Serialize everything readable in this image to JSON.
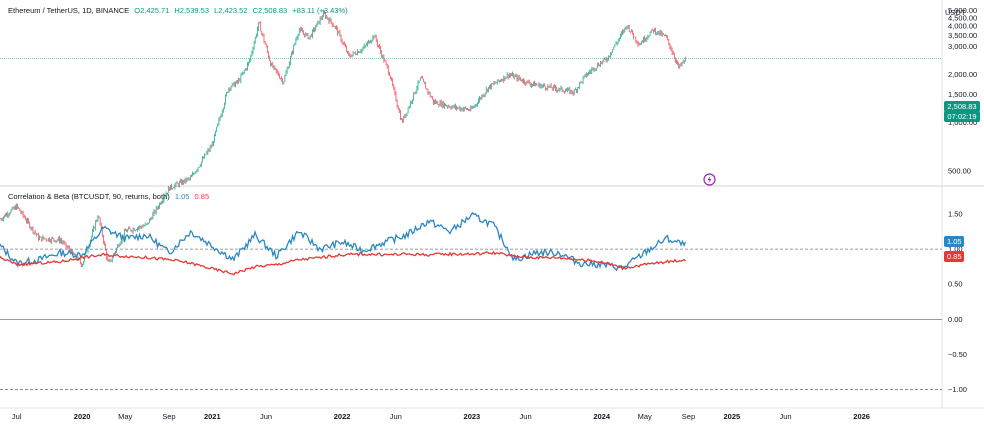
{
  "price_pane": {
    "symbol": "Ethereum / TetherUS, 1D, BINANCE",
    "open": "O2,425.71",
    "high": "H2,539.53",
    "low": "L2,423.52",
    "close": "C2,508.83",
    "change": "+83.11 (+3.43%)",
    "currency": "USDT",
    "price_tag": "2,508.83",
    "countdown_tag": "07:02:19",
    "colors": {
      "up": "#089981",
      "down": "#f23645"
    }
  },
  "indicator_pane": {
    "title": "Correlation & Beta (BTCUSDT, 90, returns, both)",
    "value_1": "1.05",
    "value_2": "0.85",
    "colors": {
      "beta": "#2e86c1",
      "corr": "#e53935"
    }
  },
  "chart_data": [
    {
      "type": "line",
      "title": "Ethereum / TetherUS, 1D, BINANCE",
      "xlabel": "",
      "ylabel": "USDT",
      "y_ticks": [
        "500.00",
        "1,000.00",
        "1,500.00",
        "2,000.00",
        "3,000.00",
        "3,500.00",
        "4,000.00",
        "4,500.00",
        "5,000.00"
      ],
      "y_tick_values": [
        500,
        1000,
        1500,
        2000,
        3000,
        3500,
        4000,
        4500,
        5000
      ],
      "x_ticks": [
        "Jul",
        "2020",
        "May",
        "Sep",
        "2021",
        "Jun",
        "2022",
        "Jun",
        "2023",
        "Jun",
        "2024",
        "May",
        "Sep",
        "2025",
        "Jun",
        "2026"
      ],
      "x_tick_dates": [
        "2019-07-01",
        "2020-01-01",
        "2020-05-01",
        "2020-09-01",
        "2021-01-01",
        "2021-06-01",
        "2022-01-01",
        "2022-06-01",
        "2023-01-01",
        "2023-06-01",
        "2024-01-01",
        "2024-05-01",
        "2024-09-01",
        "2025-01-01",
        "2025-06-01",
        "2026-01-01"
      ],
      "scale": "log",
      "series": [
        {
          "x": [
            "2019-05-15",
            "2019-07-01",
            "2019-09-01",
            "2019-11-01",
            "2020-01-01",
            "2020-02-15",
            "2020-03-15",
            "2020-05-01",
            "2020-07-01",
            "2020-09-01",
            "2020-11-01",
            "2021-01-01",
            "2021-02-15",
            "2021-03-15",
            "2021-04-15",
            "2021-05-12",
            "2021-06-15",
            "2021-07-20",
            "2021-09-01",
            "2021-10-01",
            "2021-11-10",
            "2021-12-15",
            "2022-01-20",
            "2022-03-01",
            "2022-04-01",
            "2022-05-15",
            "2022-06-18",
            "2022-08-10",
            "2022-09-15",
            "2022-11-10",
            "2022-12-30",
            "2023-02-15",
            "2023-04-15",
            "2023-06-15",
            "2023-08-15",
            "2023-10-15",
            "2023-11-15",
            "2023-12-15",
            "2024-01-15",
            "2024-03-12",
            "2024-04-15",
            "2024-05-25",
            "2024-07-01",
            "2024-08-05",
            "2024-08-25"
          ],
          "values": [
            250,
            300,
            190,
            185,
            130,
            265,
            130,
            210,
            230,
            390,
            450,
            730,
            1650,
            1800,
            2400,
            4200,
            2300,
            1800,
            3800,
            3400,
            4800,
            3900,
            2600,
            2900,
            3500,
            2000,
            1000,
            1900,
            1350,
            1250,
            1200,
            1650,
            2000,
            1750,
            1650,
            1550,
            1950,
            2250,
            2500,
            4050,
            3100,
            3800,
            3400,
            2200,
            2508.83
          ]
        }
      ]
    },
    {
      "type": "line",
      "title": "Correlation & Beta (BTCUSDT, 90, returns, both)",
      "xlabel": "",
      "ylabel": "",
      "y_ticks": [
        "1.50",
        "1.00",
        "0.50",
        "0.00",
        "−0.50",
        "−1.00"
      ],
      "y_tick_values": [
        1.5,
        1.0,
        0.5,
        0.0,
        -0.5,
        -1.0
      ],
      "reference_lines": [
        1.0,
        0.0,
        -1.0
      ],
      "x": [
        "2019-05-15",
        "2019-07-01",
        "2019-09-01",
        "2019-11-01",
        "2020-01-01",
        "2020-03-01",
        "2020-05-01",
        "2020-07-01",
        "2020-09-01",
        "2020-11-01",
        "2021-01-01",
        "2021-03-01",
        "2021-05-01",
        "2021-07-01",
        "2021-09-01",
        "2021-11-01",
        "2022-01-01",
        "2022-03-01",
        "2022-05-01",
        "2022-07-01",
        "2022-09-01",
        "2022-11-01",
        "2023-01-01",
        "2023-03-01",
        "2023-05-01",
        "2023-07-01",
        "2023-09-01",
        "2023-11-01",
        "2024-01-01",
        "2024-03-01",
        "2024-05-01",
        "2024-07-01",
        "2024-08-25"
      ],
      "series": [
        {
          "name": "1.05",
          "values": [
            1.05,
            0.8,
            0.85,
            0.95,
            0.92,
            1.3,
            1.15,
            1.2,
            0.95,
            1.25,
            1.05,
            0.85,
            1.2,
            0.9,
            1.25,
            1.0,
            1.1,
            0.98,
            1.1,
            1.2,
            1.4,
            1.25,
            1.48,
            1.35,
            0.85,
            0.95,
            0.95,
            0.8,
            0.78,
            0.73,
            0.95,
            1.15,
            1.05
          ]
        },
        {
          "name": "0.85",
          "values": [
            0.88,
            0.78,
            0.8,
            0.82,
            0.88,
            0.92,
            0.9,
            0.88,
            0.85,
            0.8,
            0.72,
            0.65,
            0.75,
            0.78,
            0.85,
            0.88,
            0.92,
            0.93,
            0.92,
            0.93,
            0.92,
            0.93,
            0.93,
            0.95,
            0.9,
            0.88,
            0.88,
            0.85,
            0.82,
            0.73,
            0.78,
            0.82,
            0.85
          ]
        }
      ]
    }
  ]
}
